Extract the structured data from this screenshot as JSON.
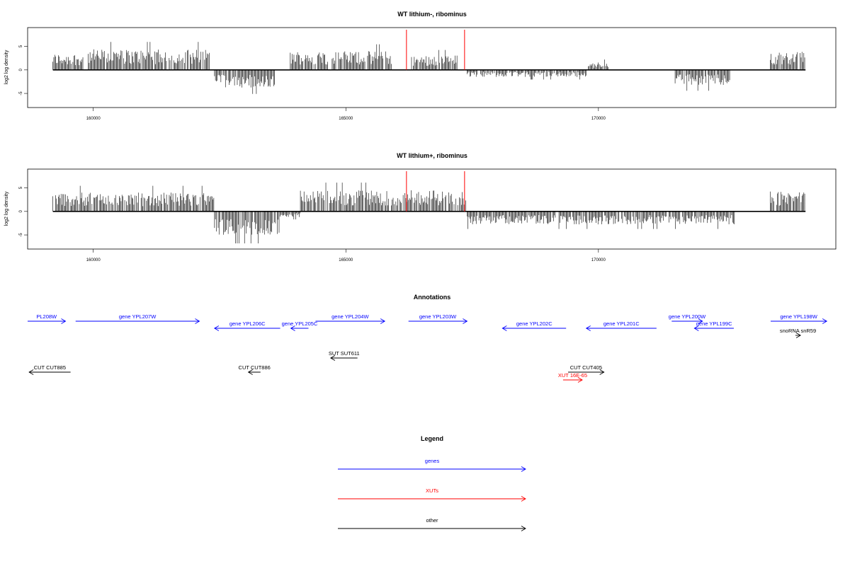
{
  "chart_data": [
    {
      "type": "bar",
      "title": "WT lithium-, ribominus",
      "xlabel": "",
      "ylabel": "log2 log density",
      "xlim": [
        158700,
        174700
      ],
      "ylim": [
        -8,
        9
      ],
      "x_ticks": [
        160000,
        165000,
        170000
      ],
      "y_ticks": [
        -5,
        0,
        5
      ],
      "markers": [
        166200,
        167350
      ],
      "marker_color": "#ff0000",
      "segments": [
        {
          "start": 159200,
          "end": 159800,
          "level": 2.8,
          "sign": 1
        },
        {
          "start": 159900,
          "end": 162300,
          "level": 3.5,
          "sign": 1
        },
        {
          "start": 162400,
          "end": 163600,
          "level": 3.0,
          "sign": -1
        },
        {
          "start": 163900,
          "end": 165900,
          "level": 3.2,
          "sign": 1
        },
        {
          "start": 166300,
          "end": 167200,
          "level": 2.5,
          "sign": 1
        },
        {
          "start": 167400,
          "end": 169800,
          "level": 1.2,
          "sign": -1
        },
        {
          "start": 169800,
          "end": 170200,
          "level": 1.3,
          "sign": 1
        },
        {
          "start": 171500,
          "end": 172600,
          "level": 2.6,
          "sign": -1
        },
        {
          "start": 173400,
          "end": 174100,
          "level": 3.2,
          "sign": 1
        }
      ]
    },
    {
      "type": "bar",
      "title": "WT lithium+, ribominus",
      "xlabel": "",
      "ylabel": "log2 log density",
      "xlim": [
        158700,
        174700
      ],
      "ylim": [
        -8,
        9
      ],
      "x_ticks": [
        160000,
        165000,
        170000
      ],
      "y_ticks": [
        -5,
        0,
        5
      ],
      "markers": [
        166200,
        167350
      ],
      "marker_color": "#ff0000",
      "segments": [
        {
          "start": 159200,
          "end": 162400,
          "level": 3.2,
          "sign": 1
        },
        {
          "start": 162400,
          "end": 163700,
          "level": 4.0,
          "sign": -1
        },
        {
          "start": 163700,
          "end": 164100,
          "level": 1.0,
          "sign": -1
        },
        {
          "start": 164100,
          "end": 167400,
          "level": 3.6,
          "sign": 1
        },
        {
          "start": 167400,
          "end": 172700,
          "level": 2.2,
          "sign": -1
        },
        {
          "start": 173400,
          "end": 174100,
          "level": 3.4,
          "sign": 1
        }
      ]
    }
  ],
  "annotations": {
    "title": "Annotations",
    "xlim": [
      158700,
      174700
    ],
    "features": [
      {
        "label": "PL208W",
        "start": 158700,
        "end": 159450,
        "strand": "+",
        "kind": "genes",
        "row": 0
      },
      {
        "label": "gene YPL207W",
        "start": 159650,
        "end": 162100,
        "strand": "+",
        "kind": "genes",
        "row": 0
      },
      {
        "label": "gene YPL206C",
        "start": 162400,
        "end": 163700,
        "strand": "-",
        "kind": "genes",
        "row": 1
      },
      {
        "label": "gene YPL205C",
        "start": 163910,
        "end": 164260,
        "strand": "-",
        "kind": "genes",
        "row": 1
      },
      {
        "label": "gene YPL204W",
        "start": 164400,
        "end": 165770,
        "strand": "+",
        "kind": "genes",
        "row": 0
      },
      {
        "label": "gene YPL203W",
        "start": 166240,
        "end": 167400,
        "strand": "+",
        "kind": "genes",
        "row": 0
      },
      {
        "label": "gene YPL202C",
        "start": 168100,
        "end": 169360,
        "strand": "-",
        "kind": "genes",
        "row": 1
      },
      {
        "label": "gene YPL201C",
        "start": 169760,
        "end": 171150,
        "strand": "-",
        "kind": "genes",
        "row": 1
      },
      {
        "label": "gene YPL200W",
        "start": 171450,
        "end": 172060,
        "strand": "+",
        "kind": "genes",
        "row": 0
      },
      {
        "label": "gene YPL199C",
        "start": 171900,
        "end": 172680,
        "strand": "-",
        "kind": "genes",
        "row": 1
      },
      {
        "label": "gene YPL198W",
        "start": 173410,
        "end": 174520,
        "strand": "+",
        "kind": "genes",
        "row": 0
      },
      {
        "label": "snoRNA snR59",
        "start": 173900,
        "end": 174000,
        "strand": "+",
        "kind": "other",
        "row": 2
      },
      {
        "label": "SUT SUT611",
        "start": 164700,
        "end": 165230,
        "strand": "-",
        "kind": "other",
        "row": 3
      },
      {
        "label": "CUT CUT885",
        "start": 158730,
        "end": 159550,
        "strand": "-",
        "kind": "other",
        "row": 4
      },
      {
        "label": "CUT CUT886",
        "start": 163070,
        "end": 163310,
        "strand": "-",
        "kind": "other",
        "row": 4
      },
      {
        "label": "CUT CUT405",
        "start": 169400,
        "end": 170110,
        "strand": "+",
        "kind": "other",
        "row": 4
      },
      {
        "label": "XUT 16E-65",
        "start": 169300,
        "end": 169680,
        "strand": "+",
        "kind": "XUTs",
        "row": 5
      }
    ]
  },
  "legend": {
    "title": "Legend",
    "items": [
      {
        "label": "genes",
        "color": "#0000ff"
      },
      {
        "label": "XUTs",
        "color": "#ff0000"
      },
      {
        "label": "other",
        "color": "#000000"
      }
    ]
  },
  "colors": {
    "genes": "#0000ff",
    "XUTs": "#ff0000",
    "other": "#000000",
    "axis": "#000000"
  }
}
